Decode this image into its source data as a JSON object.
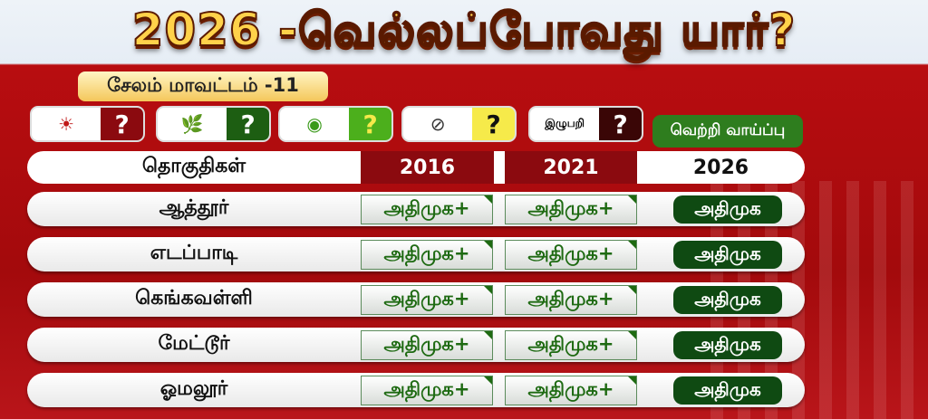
{
  "title": "2026 -வெல்லப்போவது யார்?",
  "district": "சேலம் மாவட்டம் -11",
  "parties": [
    {
      "logo": "rising-sun-icon",
      "logo_glyph": "☀",
      "mark": "?",
      "color": "#8b0a0f"
    },
    {
      "logo": "two-leaves-icon",
      "logo_glyph": "🌿",
      "mark": "?",
      "color": "#1d5e12"
    },
    {
      "logo": "party-emblem-icon",
      "logo_glyph": "◉",
      "mark": "?",
      "color": "#4caf1c",
      "mark_color": "#f5e94a"
    },
    {
      "logo": "whistle-icon",
      "logo_glyph": "⊘",
      "mark": "?",
      "color": "#f6ea4a",
      "mark_color": "#111"
    },
    {
      "logo_text": "இழுபறி",
      "mark": "?",
      "color": "#3a0606"
    }
  ],
  "win_chance_label": "வெற்றி வாய்ப்பு",
  "header": {
    "constituencies": "தொகுதிகள்",
    "y2016": "2016",
    "y2021": "2021",
    "y2026": "2026"
  },
  "rows": [
    {
      "name": "ஆத்தூர்",
      "r2016": "அதிமுக+",
      "r2021": "அதிமுக+",
      "r2026": "அதிமுக"
    },
    {
      "name": "எடப்பாடி",
      "r2016": "அதிமுக+",
      "r2021": "அதிமுக+",
      "r2026": "அதிமுக"
    },
    {
      "name": "கெங்கவள்ளி",
      "r2016": "அதிமுக+",
      "r2021": "அதிமுக+",
      "r2026": "அதிமுக"
    },
    {
      "name": "மேட்டூர்",
      "r2016": "அதிமுக+",
      "r2021": "அதிமுக+",
      "r2026": "அதிமுக"
    },
    {
      "name": "ஓமலூர்",
      "r2016": "அதிமுக+",
      "r2021": "அதிமுக+",
      "r2026": "அதிமுக"
    }
  ]
}
